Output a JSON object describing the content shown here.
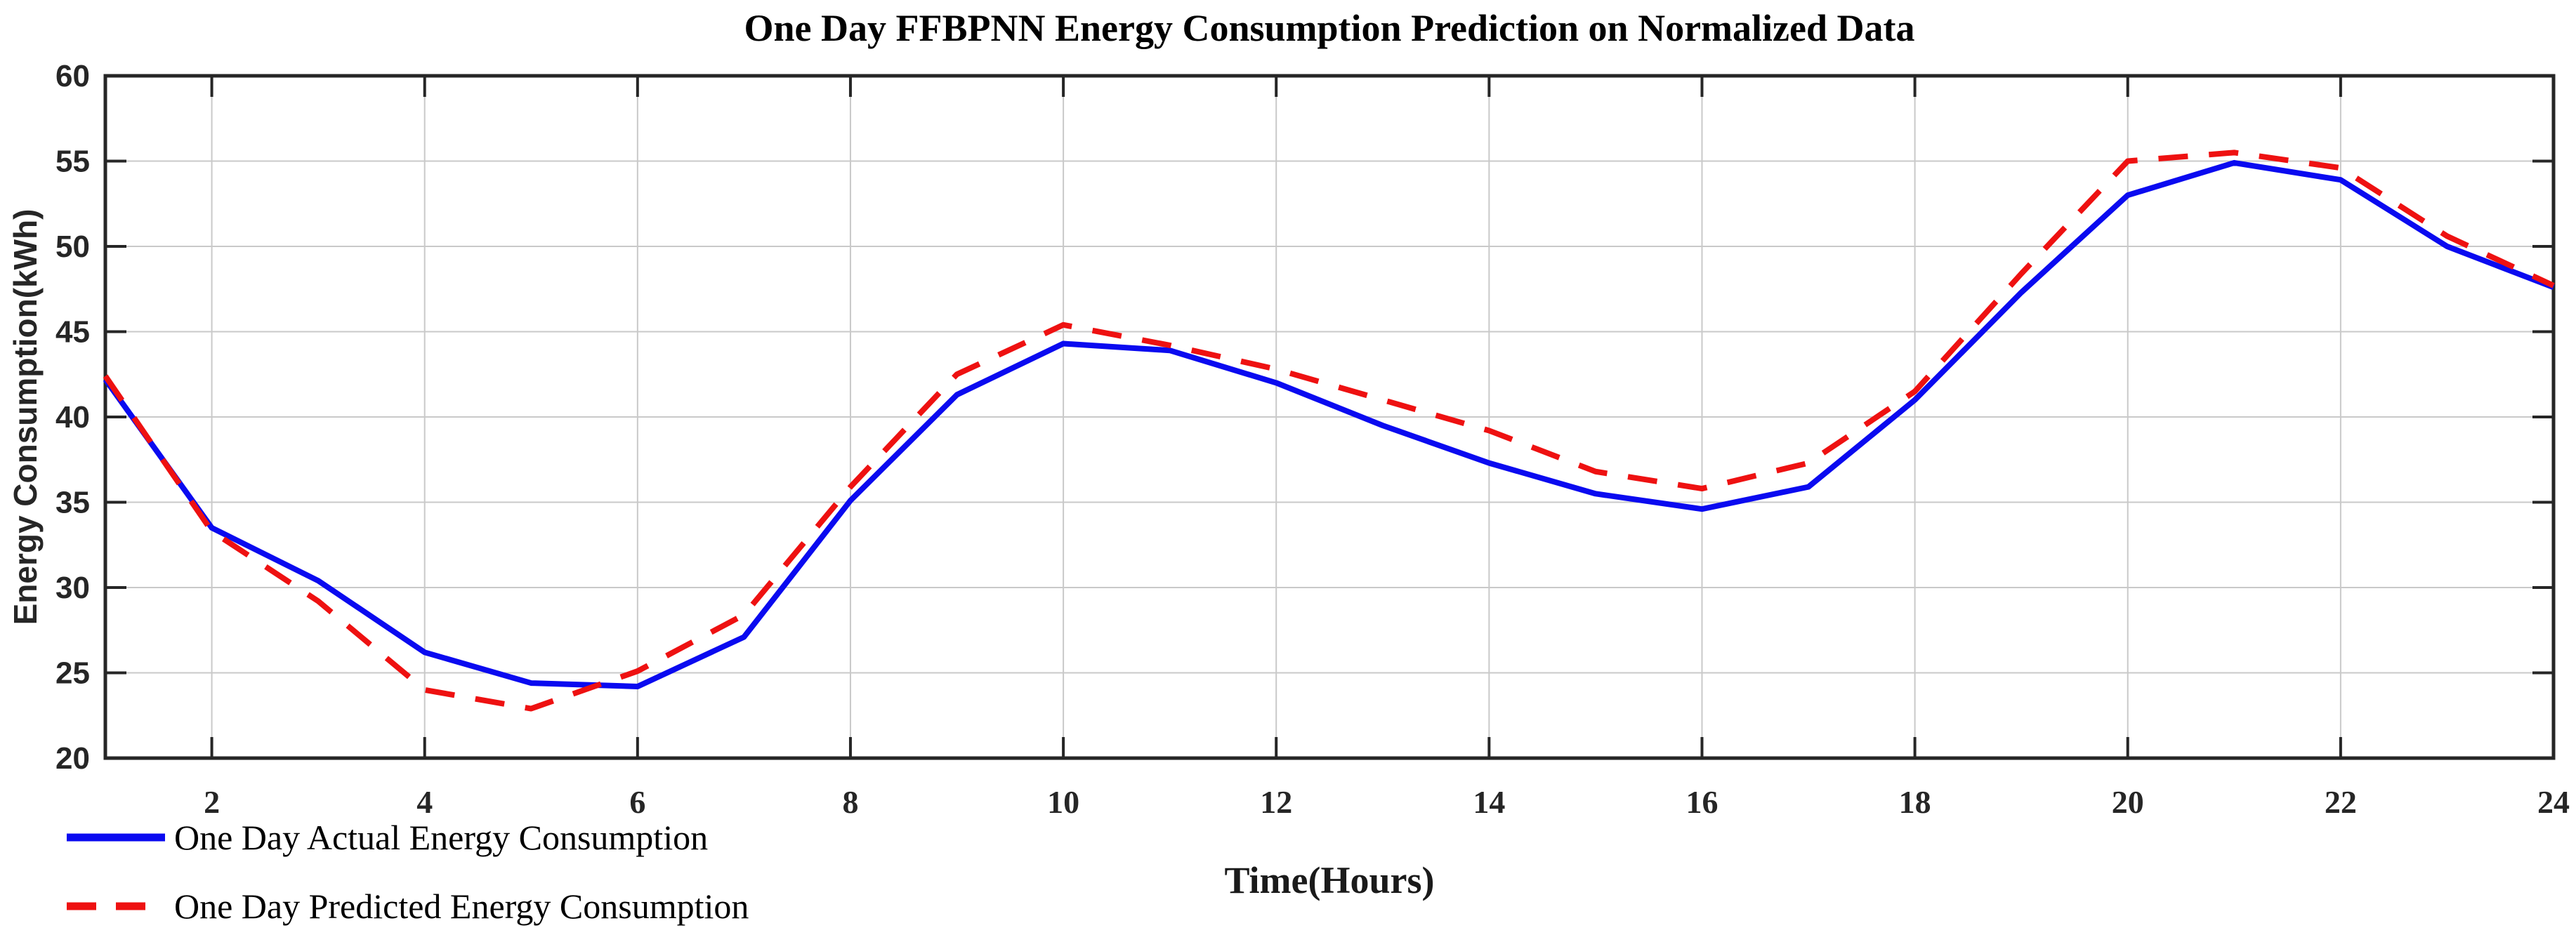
{
  "title": "One Day FFBPNN Energy Consumption Prediction on Normalized Data",
  "chart_data": {
    "type": "line",
    "title": "One Day FFBPNN Energy Consumption Prediction on Normalized Data",
    "xlabel": "Time(Hours)",
    "ylabel": "Energy Consumption(kWh)",
    "x": [
      1,
      2,
      3,
      4,
      5,
      6,
      7,
      8,
      9,
      10,
      11,
      12,
      13,
      14,
      15,
      16,
      17,
      18,
      19,
      20,
      21,
      22,
      23,
      24
    ],
    "series": [
      {
        "name": "One Day Actual Energy Consumption",
        "style": "solid",
        "color": "#0a0af0",
        "values": [
          42.2,
          33.5,
          30.4,
          26.2,
          24.4,
          24.2,
          27.1,
          35.1,
          41.3,
          44.3,
          43.9,
          42.0,
          39.5,
          37.3,
          35.5,
          34.6,
          35.9,
          41.0,
          47.3,
          53.0,
          54.9,
          53.9,
          50.0,
          47.6
        ]
      },
      {
        "name": "One Day Predicted Energy Consumption",
        "style": "dashed",
        "color": "#ee1111",
        "values": [
          42.4,
          33.3,
          29.2,
          24.0,
          22.9,
          25.1,
          28.4,
          35.9,
          42.5,
          45.4,
          44.2,
          42.8,
          41.0,
          39.2,
          36.8,
          35.8,
          37.3,
          41.5,
          48.4,
          55.0,
          55.5,
          54.6,
          50.6,
          47.7
        ]
      }
    ],
    "xlim": [
      1,
      24
    ],
    "ylim": [
      20,
      60
    ],
    "x_ticks": [
      2,
      4,
      6,
      8,
      10,
      12,
      14,
      16,
      18,
      20,
      22,
      24
    ],
    "y_ticks": [
      20,
      25,
      30,
      35,
      40,
      45,
      50,
      55,
      60
    ],
    "grid": true,
    "legend_position": "bottom-left"
  },
  "style": {
    "frame_color": "#262626",
    "grid_color": "#c9c9c9",
    "tick_label_color": "#262626",
    "background": "#ffffff",
    "actual_color": "#0a0af0",
    "predicted_color": "#ee1111"
  }
}
